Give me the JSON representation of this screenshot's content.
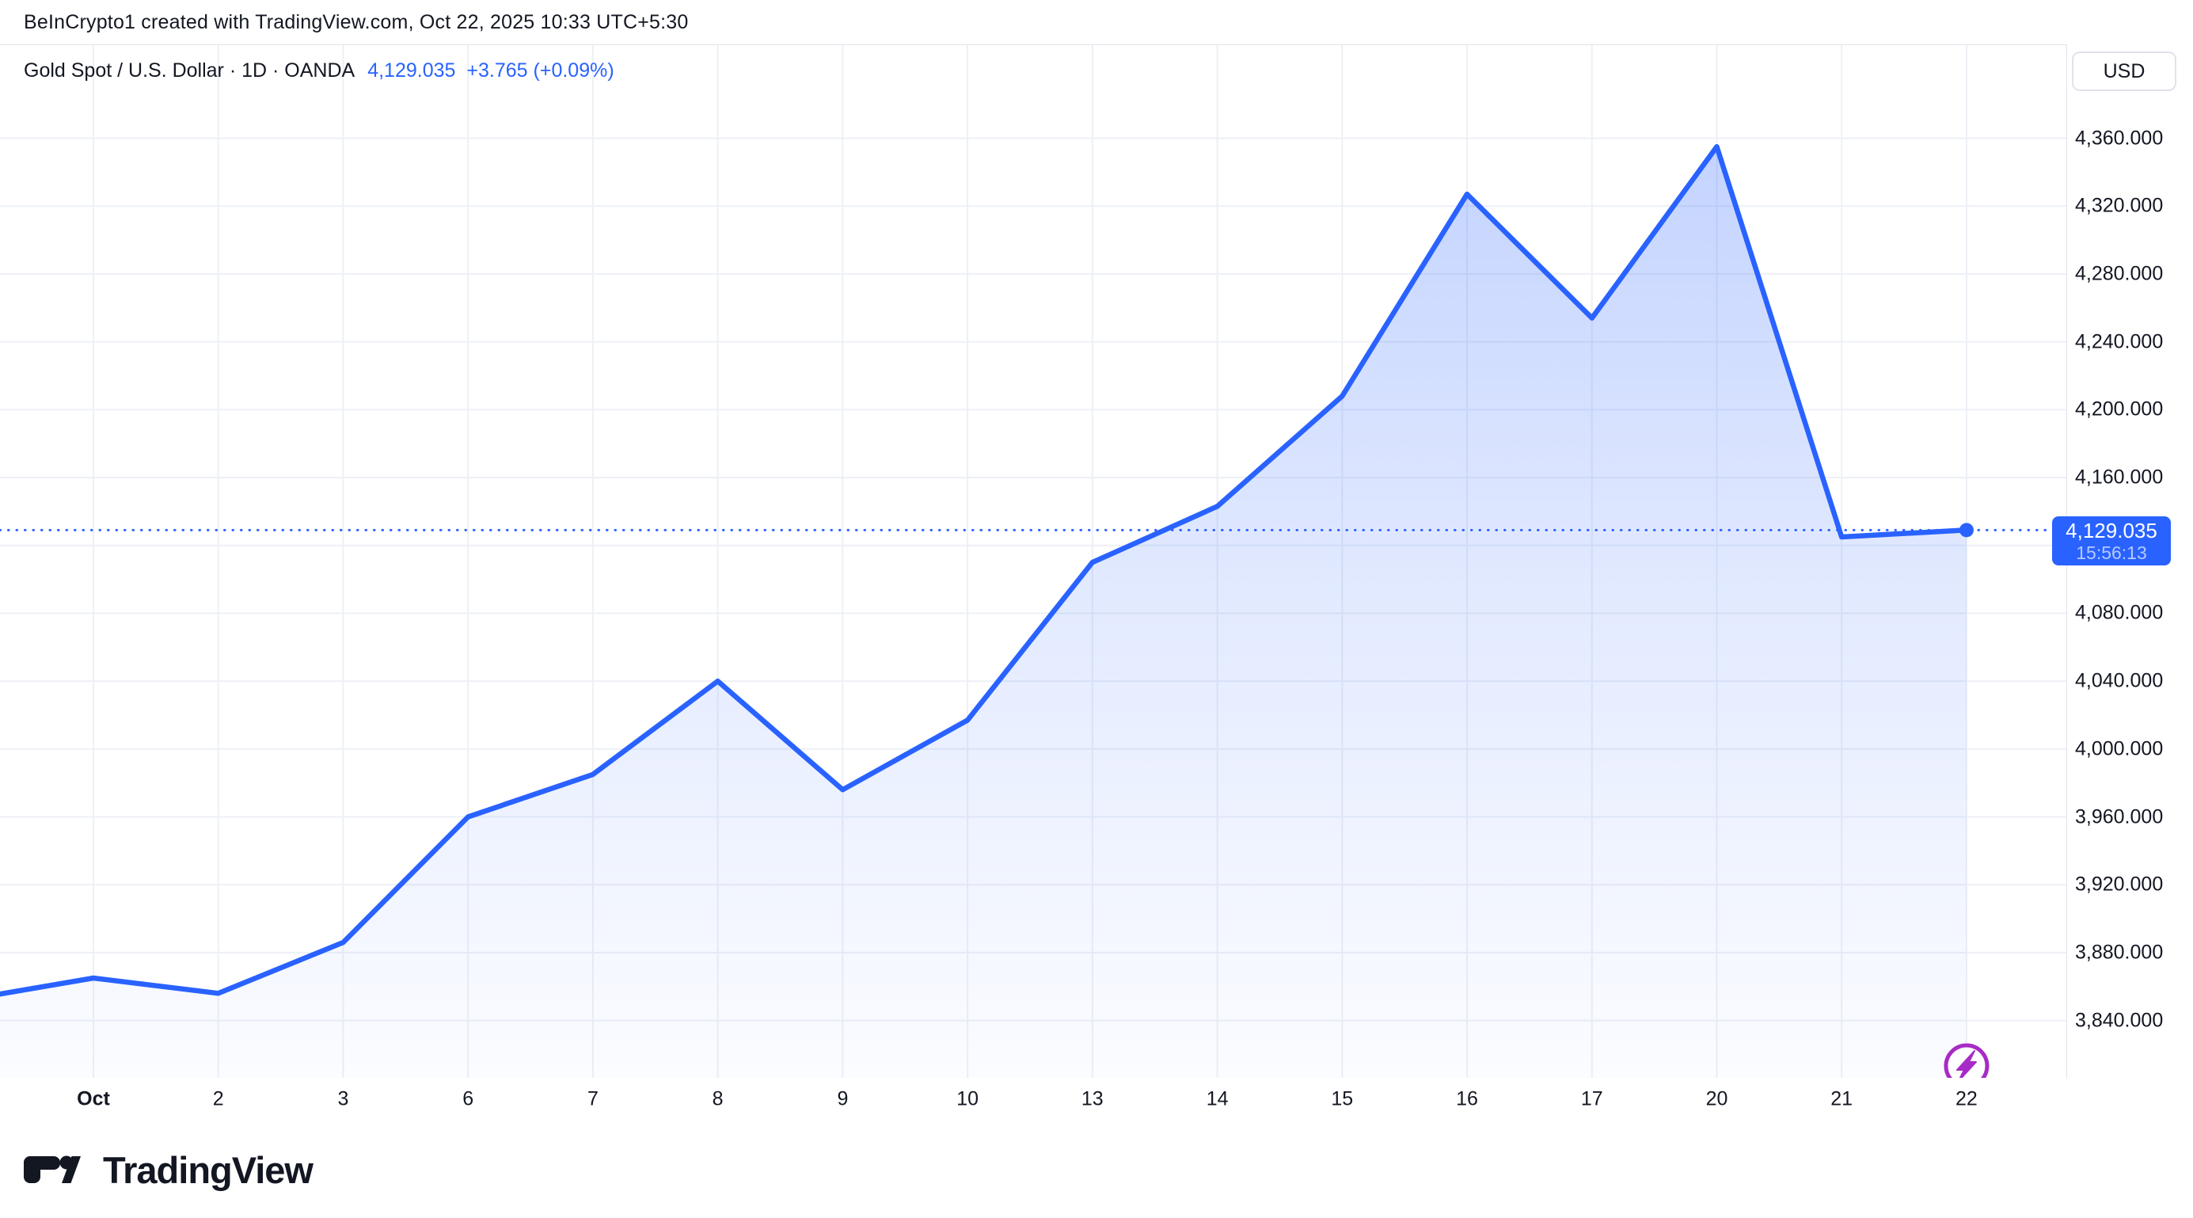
{
  "attribution": {
    "text": "BeInCrypto1 created with TradingView.com, Oct 22, 2025 10:33 UTC+5:30"
  },
  "symbol": {
    "title": "Gold Spot / U.S. Dollar · 1D · OANDA",
    "price": "4,129.035",
    "change": "+3.765 (+0.09%)"
  },
  "price_scale": {
    "currency_label": "USD",
    "price_label": {
      "price": "4,129.035",
      "time": "15:56:13"
    }
  },
  "logo": {
    "wordmark": "TradingView"
  },
  "colors": {
    "accent_blue": "#2962ff",
    "text": "#131722",
    "grid": "#edf0f6",
    "border": "#e0e3eb",
    "event_purple": "#a72bc6",
    "background": "#ffffff"
  },
  "chart_data": {
    "type": "area",
    "title": "Gold Spot / U.S. Dollar · 1D · OANDA",
    "x_labels": [
      "Oct",
      "2",
      "3",
      "6",
      "7",
      "8",
      "9",
      "10",
      "13",
      "14",
      "15",
      "16",
      "17",
      "20",
      "21",
      "22"
    ],
    "dates": [
      "Oct 1",
      "Oct 2",
      "Oct 3",
      "Oct 6",
      "Oct 7",
      "Oct 8",
      "Oct 9",
      "Oct 10",
      "Oct 13",
      "Oct 14",
      "Oct 15",
      "Oct 16",
      "Oct 17",
      "Oct 20",
      "Oct 21",
      "Oct 22"
    ],
    "values": [
      3865,
      3856,
      3886,
      3960,
      3985,
      4040,
      3976,
      4017,
      4110,
      4143,
      4208,
      4327,
      4254,
      4355,
      4125,
      4129.035
    ],
    "left_edge_entry_value": 3852,
    "last_price": 4129.035,
    "last_time": "15:56:13",
    "y_axis": {
      "min": 3840,
      "max": 4360,
      "tick_step": 40,
      "tick_labels": [
        "4,360.000",
        "4,320.000",
        "4,280.000",
        "4,240.000",
        "4,200.000",
        "4,160.000",
        "4,080.000",
        "4,040.000",
        "4,000.000",
        "3,960.000",
        "3,920.000",
        "3,880.000",
        "3,840.000"
      ]
    },
    "grid": true,
    "line_color": "#2962ff",
    "legend_position": "none",
    "event_marker": {
      "type": "flash-event",
      "date": "Oct 22",
      "color": "#a72bc6"
    }
  }
}
